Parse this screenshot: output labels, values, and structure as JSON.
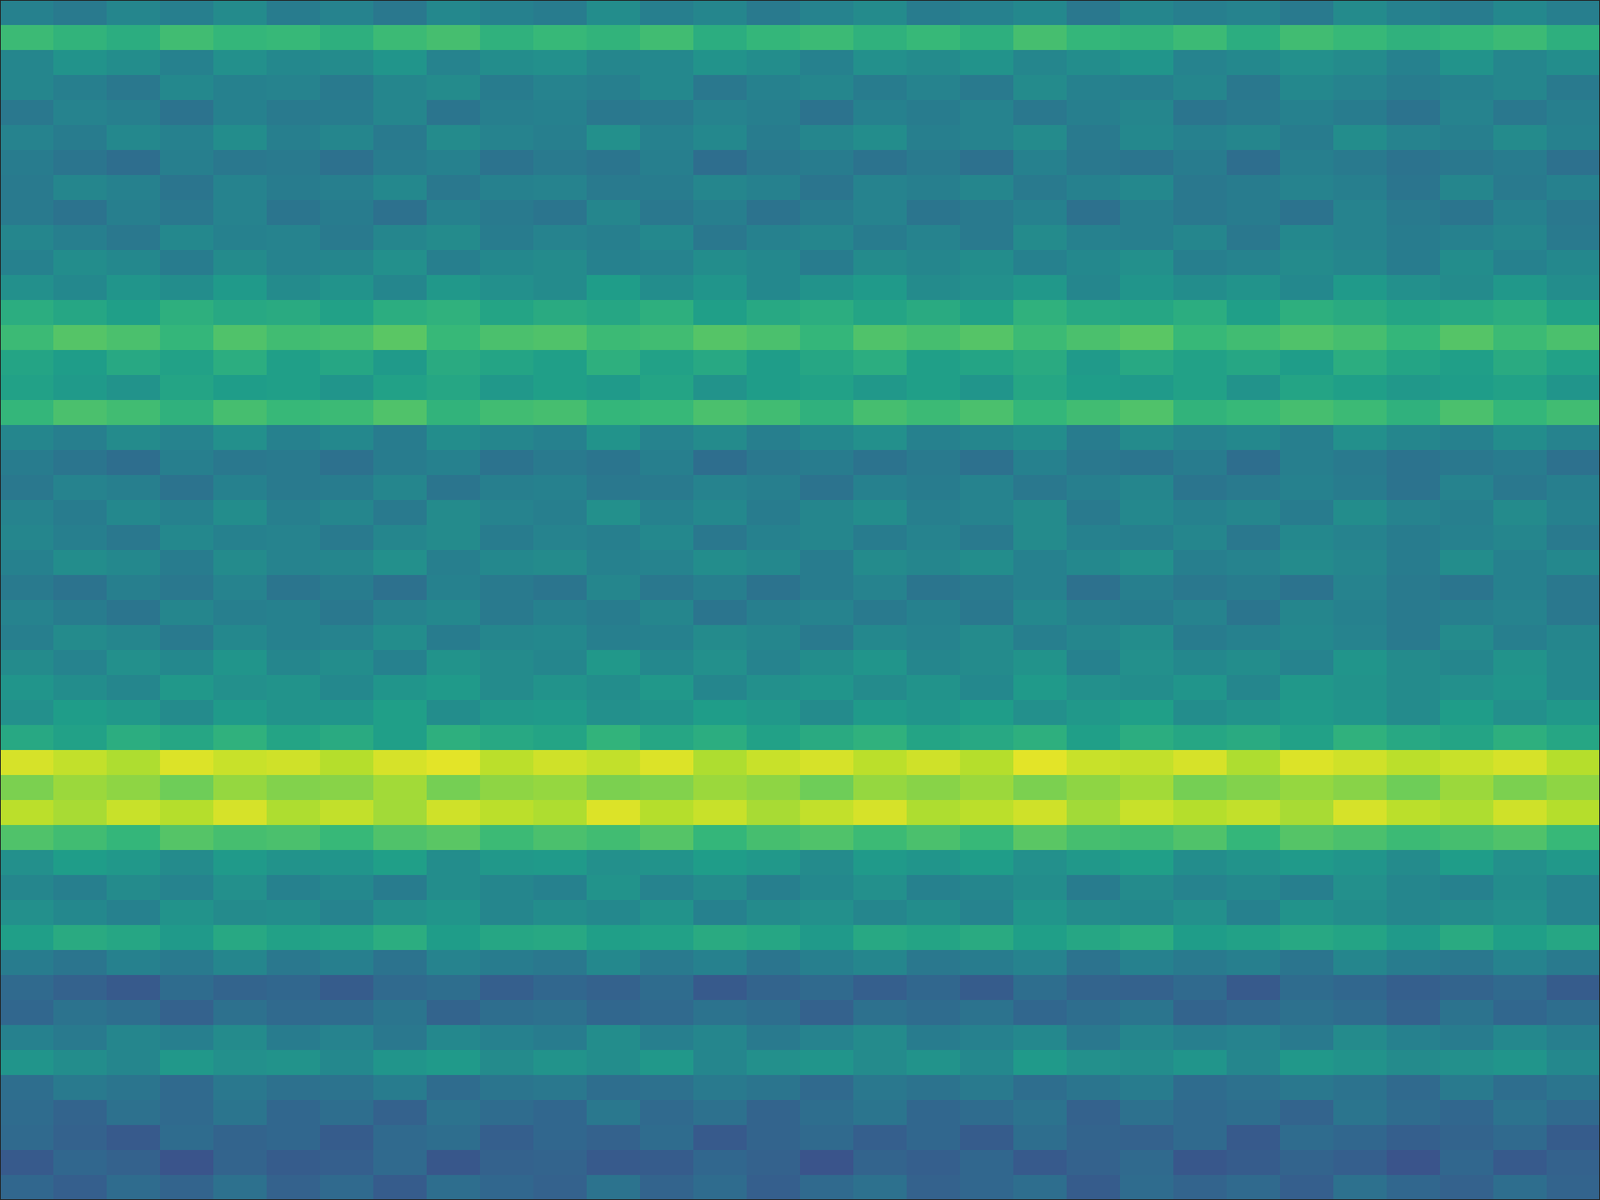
{
  "chart_data": {
    "type": "heatmap",
    "tick_labels": false,
    "zlim": [
      0,
      100
    ],
    "z": [
      [
        44,
        41,
        46,
        43,
        48,
        42,
        45,
        40,
        47,
        44,
        42,
        49,
        43,
        46,
        41,
        45,
        48,
        42,
        44,
        47,
        40,
        46,
        43,
        45,
        41,
        48,
        44,
        42,
        47,
        43
      ],
      [
        68,
        65,
        62,
        69,
        66,
        67,
        63,
        68,
        70,
        64,
        67,
        65,
        69,
        62,
        66,
        68,
        64,
        67,
        63,
        70,
        66,
        65,
        68,
        62,
        69,
        67,
        64,
        66,
        68,
        63
      ],
      [
        46,
        51,
        49,
        44,
        50,
        47,
        48,
        52,
        45,
        49,
        50,
        46,
        47,
        51,
        49,
        44,
        50,
        48,
        51,
        46,
        49,
        52,
        45,
        47,
        50,
        48,
        44,
        51,
        46,
        49
      ],
      [
        46,
        43,
        40,
        47,
        44,
        45,
        41,
        46,
        48,
        42,
        45,
        43,
        47,
        40,
        44,
        46,
        42,
        45,
        41,
        48,
        44,
        43,
        46,
        40,
        47,
        45,
        42,
        44,
        46,
        41
      ],
      [
        40,
        45,
        43,
        38,
        44,
        41,
        42,
        46,
        39,
        43,
        44,
        40,
        41,
        45,
        43,
        38,
        44,
        42,
        45,
        40,
        43,
        46,
        39,
        41,
        44,
        42,
        38,
        45,
        40,
        43
      ],
      [
        45,
        42,
        47,
        44,
        49,
        43,
        46,
        41,
        48,
        45,
        43,
        50,
        44,
        47,
        42,
        46,
        49,
        43,
        45,
        48,
        41,
        47,
        44,
        46,
        42,
        49,
        45,
        43,
        48,
        44
      ],
      [
        42,
        39,
        36,
        43,
        40,
        41,
        37,
        42,
        44,
        38,
        41,
        39,
        43,
        36,
        40,
        42,
        38,
        41,
        37,
        44,
        40,
        39,
        42,
        36,
        43,
        41,
        38,
        40,
        42,
        37
      ],
      [
        41,
        46,
        44,
        39,
        45,
        42,
        43,
        47,
        40,
        44,
        45,
        41,
        42,
        46,
        44,
        39,
        45,
        43,
        46,
        41,
        44,
        47,
        40,
        42,
        45,
        43,
        39,
        46,
        41,
        44
      ],
      [
        41,
        38,
        43,
        40,
        45,
        39,
        42,
        37,
        44,
        41,
        39,
        46,
        40,
        43,
        38,
        42,
        45,
        39,
        41,
        44,
        37,
        43,
        40,
        42,
        38,
        45,
        41,
        39,
        44,
        40
      ],
      [
        46,
        43,
        40,
        47,
        44,
        45,
        41,
        46,
        48,
        42,
        45,
        43,
        47,
        40,
        44,
        46,
        42,
        45,
        41,
        48,
        44,
        43,
        46,
        40,
        47,
        45,
        42,
        44,
        46,
        41
      ],
      [
        44,
        49,
        47,
        42,
        48,
        45,
        46,
        50,
        43,
        47,
        48,
        44,
        45,
        49,
        47,
        42,
        48,
        46,
        49,
        44,
        47,
        50,
        43,
        45,
        48,
        46,
        42,
        49,
        44,
        47
      ],
      [
        50,
        47,
        52,
        49,
        54,
        48,
        51,
        46,
        53,
        50,
        48,
        55,
        49,
        52,
        47,
        51,
        54,
        48,
        50,
        53,
        46,
        52,
        49,
        51,
        47,
        54,
        50,
        48,
        53,
        49
      ],
      [
        62,
        59,
        56,
        63,
        60,
        61,
        57,
        62,
        64,
        58,
        61,
        59,
        63,
        56,
        60,
        62,
        58,
        61,
        57,
        64,
        60,
        59,
        62,
        56,
        63,
        61,
        58,
        60,
        62,
        57
      ],
      [
        68,
        73,
        71,
        66,
        72,
        69,
        70,
        74,
        67,
        71,
        72,
        68,
        69,
        73,
        71,
        66,
        72,
        70,
        73,
        68,
        71,
        74,
        67,
        69,
        72,
        70,
        66,
        73,
        68,
        71
      ],
      [
        58,
        55,
        60,
        57,
        62,
        56,
        59,
        54,
        61,
        58,
        56,
        63,
        57,
        60,
        55,
        59,
        62,
        56,
        58,
        61,
        54,
        60,
        57,
        59,
        55,
        62,
        58,
        56,
        61,
        57
      ],
      [
        57,
        54,
        51,
        58,
        55,
        56,
        52,
        57,
        59,
        53,
        56,
        54,
        58,
        51,
        55,
        57,
        53,
        56,
        52,
        59,
        55,
        54,
        57,
        51,
        58,
        56,
        53,
        55,
        57,
        52
      ],
      [
        66,
        71,
        69,
        64,
        70,
        67,
        68,
        72,
        65,
        69,
        70,
        66,
        67,
        71,
        69,
        64,
        70,
        68,
        71,
        66,
        69,
        72,
        65,
        67,
        70,
        68,
        64,
        71,
        66,
        69
      ],
      [
        46,
        43,
        48,
        45,
        50,
        44,
        47,
        42,
        49,
        46,
        44,
        51,
        45,
        48,
        43,
        47,
        50,
        44,
        46,
        49,
        42,
        48,
        45,
        47,
        43,
        50,
        46,
        44,
        49,
        45
      ],
      [
        42,
        39,
        36,
        43,
        40,
        41,
        37,
        42,
        44,
        38,
        41,
        39,
        43,
        36,
        40,
        42,
        38,
        41,
        37,
        44,
        40,
        39,
        42,
        36,
        43,
        41,
        38,
        40,
        42,
        37
      ],
      [
        40,
        45,
        43,
        38,
        44,
        41,
        42,
        46,
        39,
        43,
        44,
        40,
        41,
        45,
        43,
        38,
        44,
        42,
        45,
        40,
        43,
        46,
        39,
        41,
        44,
        42,
        38,
        45,
        40,
        43
      ],
      [
        45,
        42,
        47,
        44,
        49,
        43,
        46,
        41,
        48,
        45,
        43,
        50,
        44,
        47,
        42,
        46,
        49,
        43,
        45,
        48,
        41,
        47,
        44,
        46,
        42,
        49,
        45,
        43,
        48,
        44
      ],
      [
        46,
        43,
        40,
        47,
        44,
        45,
        41,
        46,
        48,
        42,
        45,
        43,
        47,
        40,
        44,
        46,
        42,
        45,
        41,
        48,
        44,
        43,
        46,
        40,
        47,
        45,
        42,
        44,
        46,
        41
      ],
      [
        44,
        49,
        47,
        42,
        48,
        45,
        46,
        50,
        43,
        47,
        48,
        44,
        45,
        49,
        47,
        42,
        48,
        46,
        49,
        44,
        47,
        50,
        43,
        45,
        48,
        46,
        42,
        49,
        44,
        47
      ],
      [
        41,
        38,
        43,
        40,
        45,
        39,
        42,
        37,
        44,
        41,
        39,
        46,
        40,
        43,
        38,
        42,
        45,
        39,
        41,
        44,
        37,
        43,
        40,
        42,
        38,
        45,
        41,
        39,
        44,
        40
      ],
      [
        45,
        42,
        39,
        46,
        43,
        44,
        40,
        45,
        47,
        41,
        44,
        42,
        46,
        39,
        43,
        45,
        41,
        44,
        40,
        47,
        43,
        42,
        45,
        39,
        46,
        44,
        41,
        43,
        45,
        40
      ],
      [
        43,
        48,
        46,
        41,
        47,
        44,
        45,
        49,
        42,
        46,
        47,
        43,
        44,
        48,
        46,
        41,
        47,
        45,
        48,
        43,
        46,
        49,
        42,
        44,
        47,
        45,
        41,
        48,
        43,
        46
      ],
      [
        48,
        45,
        50,
        47,
        52,
        46,
        49,
        44,
        51,
        48,
        46,
        53,
        47,
        50,
        45,
        49,
        52,
        46,
        48,
        51,
        44,
        50,
        47,
        49,
        45,
        52,
        48,
        46,
        51,
        47
      ],
      [
        52,
        49,
        46,
        53,
        50,
        51,
        47,
        52,
        54,
        48,
        51,
        49,
        53,
        46,
        50,
        52,
        48,
        51,
        47,
        54,
        50,
        49,
        52,
        46,
        53,
        51,
        48,
        50,
        52,
        47
      ],
      [
        50,
        55,
        53,
        48,
        54,
        51,
        52,
        56,
        49,
        53,
        54,
        50,
        51,
        55,
        53,
        48,
        54,
        52,
        55,
        50,
        53,
        56,
        49,
        51,
        54,
        52,
        48,
        55,
        50,
        53
      ],
      [
        60,
        57,
        62,
        59,
        64,
        58,
        61,
        56,
        63,
        60,
        58,
        65,
        59,
        62,
        57,
        61,
        64,
        58,
        60,
        63,
        56,
        62,
        59,
        61,
        57,
        64,
        60,
        58,
        63,
        59
      ],
      [
        94,
        91,
        88,
        95,
        92,
        93,
        89,
        94,
        96,
        90,
        93,
        91,
        95,
        88,
        92,
        94,
        90,
        93,
        89,
        96,
        92,
        91,
        94,
        88,
        95,
        93,
        90,
        92,
        94,
        89
      ],
      [
        80,
        85,
        83,
        78,
        84,
        81,
        82,
        86,
        79,
        83,
        84,
        80,
        81,
        85,
        83,
        78,
        84,
        82,
        85,
        80,
        83,
        86,
        79,
        81,
        84,
        82,
        78,
        85,
        80,
        83
      ],
      [
        90,
        87,
        92,
        89,
        94,
        88,
        91,
        86,
        93,
        90,
        88,
        95,
        89,
        92,
        87,
        91,
        94,
        88,
        90,
        93,
        86,
        92,
        89,
        91,
        87,
        94,
        90,
        88,
        93,
        89
      ],
      [
        72,
        69,
        66,
        73,
        70,
        71,
        67,
        72,
        74,
        68,
        71,
        69,
        73,
        66,
        70,
        72,
        68,
        71,
        67,
        74,
        70,
        69,
        72,
        66,
        73,
        71,
        68,
        70,
        72,
        67
      ],
      [
        50,
        55,
        53,
        48,
        54,
        51,
        52,
        56,
        49,
        53,
        54,
        50,
        51,
        55,
        53,
        48,
        54,
        52,
        55,
        50,
        53,
        56,
        49,
        51,
        54,
        52,
        48,
        55,
        50,
        53
      ],
      [
        46,
        43,
        48,
        45,
        50,
        44,
        47,
        42,
        49,
        46,
        44,
        51,
        45,
        48,
        43,
        47,
        50,
        44,
        46,
        49,
        42,
        48,
        45,
        47,
        43,
        50,
        46,
        44,
        49,
        45
      ],
      [
        50,
        47,
        44,
        51,
        48,
        49,
        45,
        50,
        52,
        46,
        49,
        47,
        51,
        44,
        48,
        50,
        46,
        49,
        45,
        52,
        48,
        47,
        50,
        44,
        51,
        49,
        46,
        48,
        50,
        45
      ],
      [
        56,
        61,
        59,
        54,
        60,
        57,
        58,
        62,
        55,
        59,
        60,
        56,
        57,
        61,
        59,
        54,
        60,
        58,
        61,
        56,
        59,
        62,
        55,
        57,
        60,
        58,
        54,
        61,
        56,
        59
      ],
      [
        42,
        39,
        44,
        41,
        46,
        40,
        43,
        38,
        45,
        42,
        40,
        47,
        41,
        44,
        39,
        43,
        46,
        40,
        42,
        45,
        38,
        44,
        41,
        43,
        39,
        46,
        42,
        40,
        45,
        41
      ],
      [
        34,
        31,
        28,
        35,
        32,
        33,
        29,
        34,
        36,
        30,
        33,
        31,
        35,
        28,
        32,
        34,
        30,
        33,
        29,
        36,
        32,
        31,
        34,
        28,
        35,
        33,
        30,
        32,
        34,
        29
      ],
      [
        33,
        38,
        36,
        31,
        37,
        34,
        35,
        39,
        32,
        36,
        37,
        33,
        34,
        38,
        36,
        31,
        37,
        35,
        38,
        33,
        36,
        39,
        32,
        34,
        37,
        35,
        31,
        38,
        33,
        36
      ],
      [
        44,
        41,
        46,
        43,
        48,
        42,
        45,
        40,
        47,
        44,
        42,
        49,
        43,
        46,
        41,
        45,
        48,
        42,
        44,
        47,
        40,
        46,
        43,
        45,
        41,
        48,
        44,
        42,
        47,
        43
      ],
      [
        52,
        49,
        46,
        53,
        50,
        51,
        47,
        52,
        54,
        48,
        51,
        49,
        53,
        46,
        50,
        52,
        48,
        51,
        47,
        54,
        50,
        49,
        52,
        46,
        53,
        51,
        48,
        50,
        52,
        47
      ],
      [
        36,
        41,
        39,
        34,
        40,
        37,
        38,
        42,
        35,
        39,
        40,
        36,
        37,
        41,
        39,
        34,
        40,
        38,
        41,
        36,
        39,
        42,
        35,
        37,
        40,
        38,
        34,
        41,
        36,
        39
      ],
      [
        35,
        32,
        37,
        34,
        39,
        33,
        36,
        31,
        38,
        35,
        33,
        40,
        34,
        37,
        32,
        36,
        39,
        33,
        35,
        38,
        31,
        37,
        34,
        36,
        32,
        39,
        35,
        33,
        38,
        34
      ],
      [
        34,
        31,
        28,
        35,
        32,
        33,
        29,
        34,
        36,
        30,
        33,
        31,
        35,
        28,
        32,
        34,
        30,
        33,
        29,
        36,
        32,
        31,
        34,
        28,
        35,
        33,
        30,
        32,
        34,
        29
      ],
      [
        28,
        33,
        31,
        26,
        32,
        29,
        30,
        34,
        27,
        31,
        32,
        28,
        29,
        33,
        31,
        26,
        32,
        30,
        33,
        28,
        31,
        34,
        27,
        29,
        32,
        30,
        26,
        33,
        28,
        31
      ],
      [
        33,
        30,
        35,
        32,
        37,
        31,
        34,
        29,
        36,
        33,
        31,
        38,
        32,
        35,
        30,
        34,
        37,
        31,
        33,
        36,
        29,
        35,
        32,
        34,
        30,
        37,
        33,
        31,
        36,
        32
      ]
    ]
  }
}
